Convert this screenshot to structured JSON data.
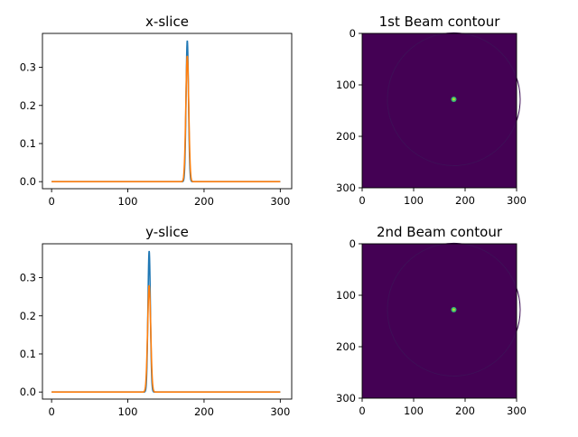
{
  "colors": {
    "series1": "#1f77b4",
    "series2": "#ff7f0e",
    "heatmap_bg": "#440154",
    "heatmap_ring": "#3f0f57",
    "heatmap_spot": "#35b779",
    "heatmap_spot_core": "#b5de2b"
  },
  "chart_data": [
    {
      "type": "line",
      "title": "x-slice",
      "xlabel": "",
      "ylabel": "",
      "xlim": [
        -12,
        315
      ],
      "ylim": [
        -0.0185,
        0.389
      ],
      "xticks": [
        0,
        100,
        200,
        300
      ],
      "yticks": [
        0.0,
        0.1,
        0.2,
        0.3
      ],
      "ytick_labels": [
        "0.0",
        "0.1",
        "0.2",
        "0.3"
      ],
      "grid": false,
      "series": [
        {
          "peak_x": 178,
          "peak_y": 0.37,
          "sigma": 1.6,
          "x_range": [
            0,
            300
          ]
        },
        {
          "peak_x": 178,
          "peak_y": 0.33,
          "sigma": 1.9,
          "x_range": [
            0,
            300
          ]
        }
      ]
    },
    {
      "type": "line",
      "title": "y-slice",
      "xlabel": "",
      "ylabel": "",
      "xlim": [
        -12,
        315
      ],
      "ylim": [
        -0.0185,
        0.389
      ],
      "xticks": [
        0,
        100,
        200,
        300
      ],
      "yticks": [
        0.0,
        0.1,
        0.2,
        0.3
      ],
      "ytick_labels": [
        "0.0",
        "0.1",
        "0.2",
        "0.3"
      ],
      "grid": false,
      "series": [
        {
          "peak_x": 128,
          "peak_y": 0.37,
          "sigma": 1.6,
          "x_range": [
            0,
            300
          ]
        },
        {
          "peak_x": 128,
          "peak_y": 0.28,
          "sigma": 2.0,
          "x_range": [
            0,
            300
          ]
        }
      ]
    },
    {
      "type": "heatmap",
      "title": "1st Beam contour",
      "xlim": [
        0,
        300
      ],
      "ylim": [
        300,
        0
      ],
      "xticks": [
        0,
        100,
        200,
        300
      ],
      "yticks": [
        0,
        100,
        200,
        300
      ],
      "spot": {
        "x": 178,
        "y": 128
      }
    },
    {
      "type": "heatmap",
      "title": "2nd Beam contour",
      "xlim": [
        0,
        300
      ],
      "ylim": [
        300,
        0
      ],
      "xticks": [
        0,
        100,
        200,
        300
      ],
      "yticks": [
        0,
        100,
        200,
        300
      ],
      "spot": {
        "x": 178,
        "y": 128
      }
    }
  ]
}
